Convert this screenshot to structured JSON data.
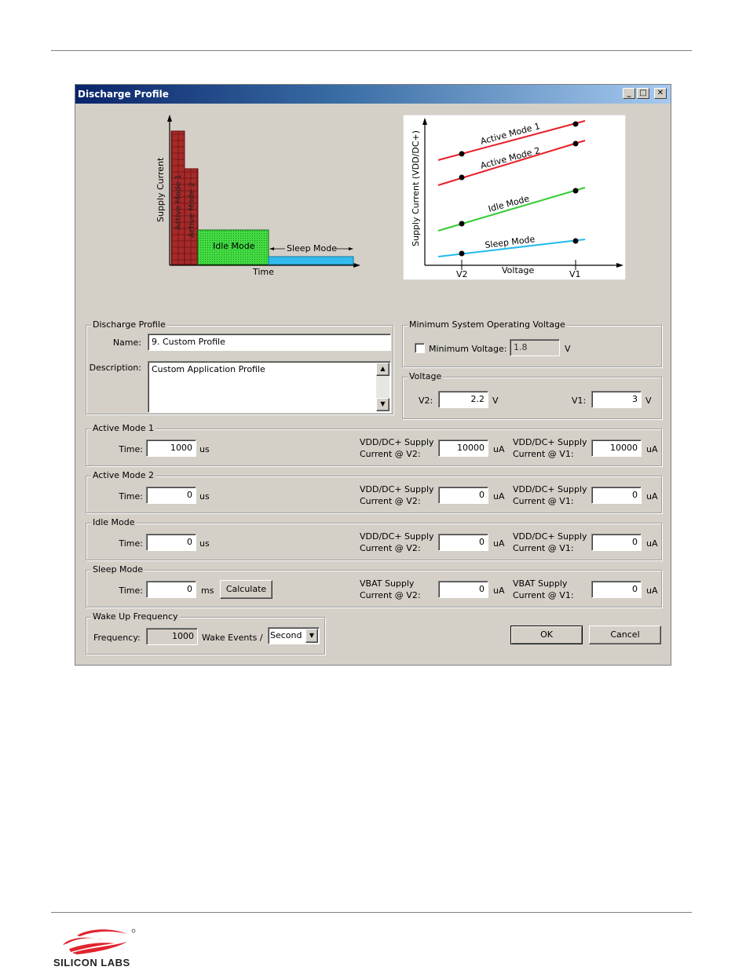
{
  "window": {
    "title": "Discharge Profile"
  },
  "left_figure": {
    "y_axis": "Supply Current",
    "x_axis": "Time",
    "bars": [
      "Active Mode 1",
      "Active Mode 2"
    ],
    "idle": "Idle Mode",
    "sleep": "Sleep Mode"
  },
  "right_figure": {
    "y_axis": "Supply Current (VDD/DC+)",
    "x_axis": "Voltage",
    "v2": "V2",
    "v1": "V1",
    "lines": [
      "Active Mode 1",
      "Active Mode 2",
      "Idle Mode",
      "Sleep Mode"
    ],
    "colors": [
      "#e8202a",
      "#e8202a",
      "#33cc33",
      "#22bbee"
    ]
  },
  "discharge_profile": {
    "legend": "Discharge Profile",
    "name_label": "Name:",
    "name_value": "9. Custom Profile",
    "desc_label": "Description:",
    "desc_value": "Custom Application Profile"
  },
  "min_voltage": {
    "legend": "Minimum System Operating Voltage",
    "label": "Minimum Voltage:",
    "value": "1.8",
    "unit": "V"
  },
  "voltage": {
    "legend": "Voltage",
    "v2_label": "V2:",
    "v2_value": "2.2",
    "v2_unit": "V",
    "v1_label": "V1:",
    "v1_value": "3",
    "v1_unit": "V"
  },
  "modes": [
    {
      "legend": "Active Mode 1",
      "time_label": "Time:",
      "time": "1000",
      "time_unit": "us",
      "v2_label_1": "VDD/DC+ Supply",
      "v2_label_2": "Current @ V2:",
      "v2": "10000",
      "v2_unit": "uA",
      "v1_label_1": "VDD/DC+ Supply",
      "v1_label_2": "Current @ V1:",
      "v1": "10000",
      "v1_unit": "uA"
    },
    {
      "legend": "Active Mode 2",
      "time_label": "Time:",
      "time": "0",
      "time_unit": "us",
      "v2_label_1": "VDD/DC+ Supply",
      "v2_label_2": "Current @ V2:",
      "v2": "0",
      "v2_unit": "uA",
      "v1_label_1": "VDD/DC+ Supply",
      "v1_label_2": "Current @ V1:",
      "v1": "0",
      "v1_unit": "uA"
    },
    {
      "legend": "Idle Mode",
      "time_label": "Time:",
      "time": "0",
      "time_unit": "us",
      "v2_label_1": "VDD/DC+ Supply",
      "v2_label_2": "Current @ V2:",
      "v2": "0",
      "v2_unit": "uA",
      "v1_label_1": "VDD/DC+ Supply",
      "v1_label_2": "Current @ V1:",
      "v1": "0",
      "v1_unit": "uA"
    },
    {
      "legend": "Sleep Mode",
      "time_label": "Time:",
      "time": "0",
      "time_unit": "ms",
      "calc": "Calculate",
      "v2_label_1": "VBAT Supply",
      "v2_label_2": "Current @ V2:",
      "v2": "0",
      "v2_unit": "uA",
      "v1_label_1": "VBAT Supply",
      "v1_label_2": "Current @ V1:",
      "v1": "0",
      "v1_unit": "uA"
    }
  ],
  "wake": {
    "legend": "Wake Up Frequency",
    "freq_label": "Frequency:",
    "freq_value": "1000",
    "events_label": "Wake Events /",
    "unit_value": "Second"
  },
  "buttons": {
    "ok": "OK",
    "cancel": "Cancel"
  },
  "footer": {
    "brand": "SILICON LABS"
  }
}
